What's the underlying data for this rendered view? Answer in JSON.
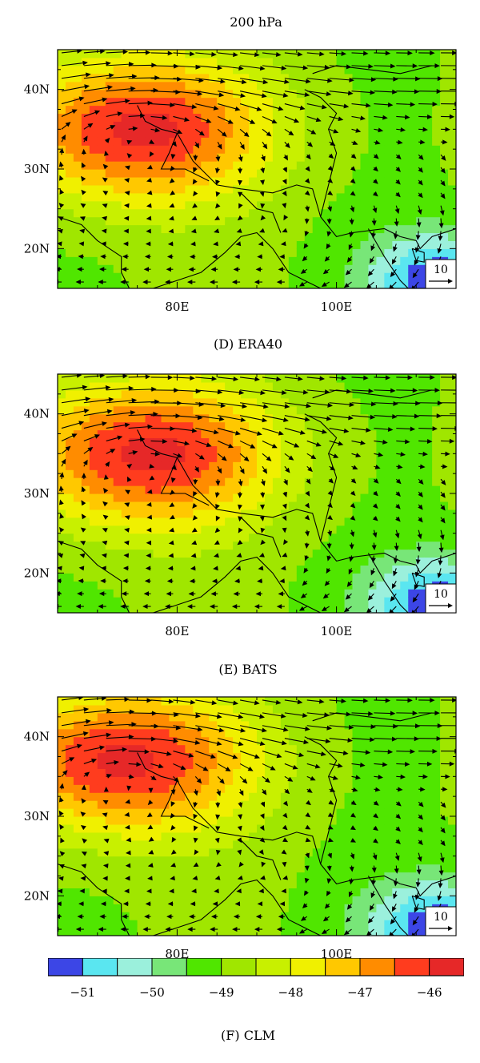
{
  "figure": {
    "title": "200 hPa",
    "panels": [
      {
        "id": "era40",
        "caption": "(D) ERA40"
      },
      {
        "id": "bats",
        "caption": "(E) BATS"
      },
      {
        "id": "clm",
        "caption": "(F) CLM"
      }
    ]
  },
  "chart_data": {
    "type": "heatmap",
    "x_axis": {
      "ticks": [
        "80E",
        "100E"
      ],
      "lon_range": [
        65,
        115
      ]
    },
    "y_axis": {
      "ticks": [
        "40N",
        "30N",
        "20N"
      ],
      "lat_range": [
        15,
        45
      ]
    },
    "reference_vector": "10",
    "colorbar": {
      "tick_labels": [
        "−51",
        "−50",
        "−49",
        "−48",
        "−47",
        "−46"
      ],
      "tick_values": [
        -51,
        -50,
        -49,
        -48,
        -47,
        -46
      ],
      "bins": [
        {
          "color": "#3c46e6"
        },
        {
          "color": "#5ae6f0"
        },
        {
          "color": "#9bf0dc"
        },
        {
          "color": "#78e678"
        },
        {
          "color": "#50e600"
        },
        {
          "color": "#a0e600"
        },
        {
          "color": "#c8f000"
        },
        {
          "color": "#f0f000"
        },
        {
          "color": "#ffc800"
        },
        {
          "color": "#ff8c00"
        },
        {
          "color": "#ff3c1e"
        },
        {
          "color": "#e62828"
        }
      ]
    },
    "panels": [
      {
        "id": "era40",
        "warm_center": [
          75,
          35
        ],
        "warm_value": -46,
        "cold_corner": [
          113,
          16
        ],
        "cold_value": -51
      },
      {
        "id": "bats",
        "warm_center": [
          76,
          35
        ],
        "warm_value": -46,
        "cold_corner": [
          113,
          16
        ],
        "cold_value": -51
      },
      {
        "id": "clm",
        "warm_center": [
          73,
          37
        ],
        "warm_value": -46,
        "cold_corner": [
          113,
          16
        ],
        "cold_value": -51
      }
    ]
  }
}
